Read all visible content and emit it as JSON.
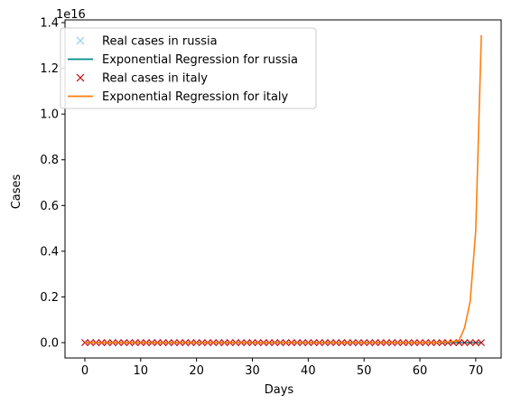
{
  "chart_data": {
    "type": "line",
    "title": "",
    "xlabel": "Days",
    "ylabel": "Cases",
    "y_offset_label": "1e16",
    "xlim": [
      -3.55,
      74.55
    ],
    "ylim": [
      -672000000000000.0,
      1.412e+16
    ],
    "xticks": [
      0,
      10,
      20,
      30,
      40,
      50,
      60,
      70
    ],
    "xtick_labels": [
      "0",
      "10",
      "20",
      "30",
      "40",
      "50",
      "60",
      "70"
    ],
    "yticks": [
      0,
      0.2,
      0.4,
      0.6,
      0.8,
      1.0,
      1.2,
      1.4
    ],
    "ytick_labels": [
      "0.0",
      "0.2",
      "0.4",
      "0.6",
      "0.8",
      "1.0",
      "1.2",
      "1.4"
    ],
    "grid": false,
    "legend_position": "top-left",
    "series": [
      {
        "name": "Real cases in russia",
        "style": "marker-x",
        "color": "#87ceeb",
        "x": [
          0,
          1,
          2,
          3,
          4,
          5,
          6,
          7,
          8,
          9,
          10,
          11,
          12,
          13,
          14,
          15,
          16,
          17,
          18,
          19,
          20,
          21,
          22,
          23,
          24,
          25,
          26,
          27,
          28,
          29,
          30,
          31,
          32,
          33,
          34,
          35,
          36,
          37,
          38,
          39,
          40,
          41,
          42,
          43,
          44,
          45,
          46,
          47,
          48,
          49,
          50,
          51,
          52,
          53,
          54,
          55,
          56,
          57,
          58,
          59,
          60,
          61,
          62,
          63,
          64,
          65,
          66,
          67,
          68,
          69,
          70,
          71
        ],
        "y": [
          0,
          0,
          0,
          0,
          0,
          0,
          0,
          0,
          0,
          0,
          0,
          0,
          0,
          0,
          0,
          0,
          0,
          0,
          0,
          0,
          0,
          0,
          0,
          0,
          0,
          0,
          0,
          0,
          0,
          0,
          0,
          0,
          0,
          0,
          0,
          0,
          0,
          0,
          0,
          0,
          0,
          0,
          0,
          0,
          0,
          0,
          0,
          0,
          0,
          0,
          0,
          0,
          0,
          0,
          0,
          0,
          0,
          0,
          0,
          0,
          0,
          0,
          0,
          0,
          0,
          0,
          0,
          0,
          0,
          0,
          0,
          0
        ]
      },
      {
        "name": "Exponential Regression for russia",
        "style": "line",
        "color": "#008b8b",
        "x": [
          0,
          1,
          2,
          3,
          4,
          5,
          6,
          7,
          8,
          9,
          10,
          11,
          12,
          13,
          14,
          15,
          16,
          17,
          18,
          19,
          20,
          21,
          22,
          23,
          24,
          25,
          26,
          27,
          28,
          29,
          30,
          31,
          32,
          33,
          34,
          35,
          36,
          37,
          38,
          39,
          40,
          41,
          42,
          43,
          44,
          45,
          46,
          47,
          48,
          49,
          50,
          51,
          52,
          53,
          54,
          55,
          56,
          57,
          58,
          59,
          60,
          61,
          62,
          63,
          64,
          65,
          66,
          67,
          68,
          69,
          70,
          71
        ],
        "y": [
          0,
          0,
          0,
          0,
          0,
          0,
          0,
          0,
          0,
          0,
          0,
          0,
          0,
          0,
          0,
          0,
          0,
          0,
          0,
          0,
          0,
          0,
          0,
          0,
          0,
          0,
          0,
          0,
          0,
          0,
          0,
          0,
          0,
          0,
          0,
          0,
          0,
          0,
          0,
          0,
          0,
          0,
          0,
          0,
          0,
          0,
          0,
          0,
          0,
          0,
          0,
          0,
          0,
          0,
          0,
          0,
          0,
          0,
          0,
          0,
          0,
          0,
          0,
          0,
          0,
          0,
          0,
          0,
          0,
          0,
          0,
          0
        ]
      },
      {
        "name": "Real cases in italy",
        "style": "marker-x",
        "color": "#cc0000",
        "x": [
          0,
          1,
          2,
          3,
          4,
          5,
          6,
          7,
          8,
          9,
          10,
          11,
          12,
          13,
          14,
          15,
          16,
          17,
          18,
          19,
          20,
          21,
          22,
          23,
          24,
          25,
          26,
          27,
          28,
          29,
          30,
          31,
          32,
          33,
          34,
          35,
          36,
          37,
          38,
          39,
          40,
          41,
          42,
          43,
          44,
          45,
          46,
          47,
          48,
          49,
          50,
          51,
          52,
          53,
          54,
          55,
          56,
          57,
          58,
          59,
          60,
          61,
          62,
          63,
          64,
          65,
          66,
          67,
          68,
          69,
          70,
          71
        ],
        "y": [
          0,
          0,
          0,
          0,
          0,
          0,
          0,
          0,
          0,
          0,
          0,
          0,
          0,
          0,
          0,
          0,
          0,
          0,
          0,
          0,
          0,
          0,
          0,
          0,
          0,
          0,
          0,
          0,
          0,
          0,
          0,
          0,
          0,
          0,
          0,
          0,
          0,
          0,
          0,
          0,
          0,
          0,
          0,
          0,
          0,
          0,
          0,
          0,
          0,
          0,
          0,
          0,
          0,
          0,
          0,
          0,
          0,
          0,
          0,
          0,
          0,
          0,
          0,
          0,
          0,
          0,
          0,
          0,
          0,
          0,
          0,
          0
        ]
      },
      {
        "name": "Exponential Regression for italy",
        "style": "line",
        "color": "#ff7f0e",
        "x": [
          0,
          5,
          10,
          15,
          20,
          25,
          30,
          35,
          40,
          45,
          50,
          55,
          60,
          62,
          63,
          64,
          65,
          66,
          67,
          68,
          69,
          70,
          71
        ],
        "y": [
          0,
          0,
          0,
          0,
          0,
          0,
          0,
          0,
          0,
          0,
          0,
          0,
          2000000000000.0,
          5000000000000.0,
          9000000000000.0,
          16000000000000.0,
          29000000000000.0,
          52000000000000.0,
          95000000000000.0,
          652000000000000.0,
          1810000000000000.0,
          4900000000000000.0,
          1.345e+16
        ]
      }
    ]
  }
}
